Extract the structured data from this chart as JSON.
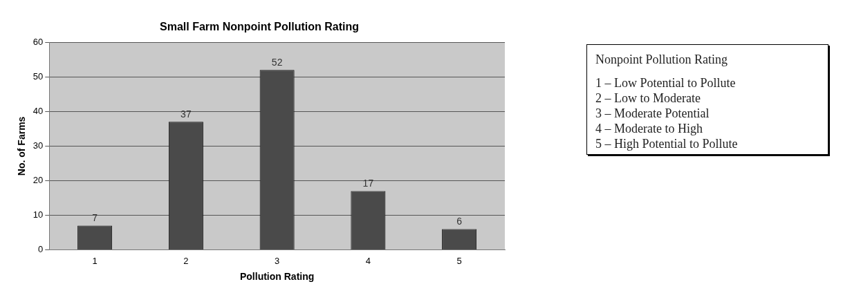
{
  "chart_data": {
    "type": "bar",
    "title": "Small Farm Nonpoint Pollution Rating",
    "xlabel": "Pollution Rating",
    "ylabel": "No. of Farms",
    "categories": [
      "1",
      "2",
      "3",
      "4",
      "5"
    ],
    "values": [
      7,
      37,
      52,
      17,
      6
    ],
    "color": "#4a4a4a",
    "ylim": [
      0,
      60
    ],
    "yticks": [
      0,
      10,
      20,
      30,
      40,
      50,
      60
    ],
    "grid": "y",
    "data_labels": true,
    "annotations": [
      "Nonpoint Pollution Rating",
      "1 – Low Potential to Pollute",
      "2 – Low to Moderate",
      "3 – Moderate Potential",
      "4 – Moderate to High",
      "5 – High Potential to Pollute"
    ]
  }
}
